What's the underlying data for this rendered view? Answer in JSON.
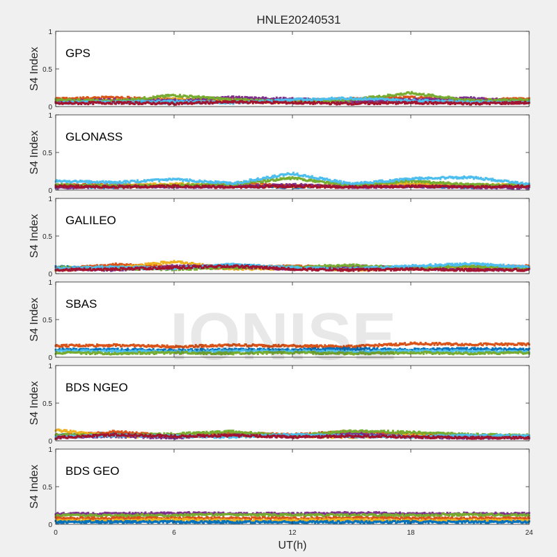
{
  "figure": {
    "title": "HNLE20240531",
    "xlabel": "UT(h)",
    "watermark": "IONISE"
  },
  "chart_data": {
    "type": "scatter",
    "xlim": [
      0,
      24
    ],
    "ylim": [
      0,
      1
    ],
    "x_ticks": [
      0,
      6,
      12,
      18,
      24
    ],
    "x_tick_labels": [
      "0",
      "6",
      "12",
      "18",
      "24"
    ],
    "y_ticks": [
      0,
      0.5,
      1
    ],
    "y_tick_labels": [
      "0",
      "0.5",
      "1"
    ],
    "grid": false,
    "colors": [
      "#0072BD",
      "#D95319",
      "#EDB120",
      "#7E2F8E",
      "#77AC30",
      "#4DBEEE",
      "#A2142F"
    ],
    "panels": [
      {
        "label": "GPS",
        "ylabel": "S4 Index",
        "show_x_tick_labels": false,
        "series": [
          {
            "color": "#0072BD",
            "x": [
              0,
              3,
              6,
              9,
              12,
              15,
              18,
              21,
              24
            ],
            "y": [
              0.08,
              0.06,
              0.05,
              0.07,
              0.08,
              0.06,
              0.07,
              0.09,
              0.07
            ]
          },
          {
            "color": "#D95319",
            "x": [
              0,
              3,
              6,
              9,
              12,
              15,
              18,
              21,
              24
            ],
            "y": [
              0.1,
              0.12,
              0.09,
              0.11,
              0.08,
              0.1,
              0.12,
              0.09,
              0.1
            ]
          },
          {
            "color": "#EDB120",
            "x": [
              0,
              3,
              6,
              9,
              12,
              15,
              18,
              21,
              24
            ],
            "y": [
              0.06,
              0.08,
              0.1,
              0.07,
              0.06,
              0.08,
              0.07,
              0.06,
              0.08
            ]
          },
          {
            "color": "#7E2F8E",
            "x": [
              0,
              3,
              6,
              9,
              12,
              15,
              18,
              21,
              24
            ],
            "y": [
              0.07,
              0.09,
              0.08,
              0.12,
              0.1,
              0.07,
              0.09,
              0.11,
              0.06
            ]
          },
          {
            "color": "#77AC30",
            "x": [
              0,
              3,
              6,
              9,
              12,
              15,
              18,
              21,
              24
            ],
            "y": [
              0.09,
              0.07,
              0.15,
              0.09,
              0.07,
              0.09,
              0.18,
              0.08,
              0.09
            ]
          },
          {
            "color": "#4DBEEE",
            "x": [
              0,
              3,
              6,
              9,
              12,
              15,
              18,
              21,
              24
            ],
            "y": [
              0.05,
              0.06,
              0.07,
              0.05,
              0.09,
              0.11,
              0.08,
              0.06,
              0.05
            ]
          },
          {
            "color": "#A2142F",
            "x": [
              0,
              3,
              6,
              9,
              12,
              15,
              18,
              21,
              24
            ],
            "y": [
              0.04,
              0.05,
              0.04,
              0.06,
              0.05,
              0.04,
              0.05,
              0.04,
              0.05
            ]
          }
        ]
      },
      {
        "label": "GLONASS",
        "ylabel": "S4 Index",
        "show_x_tick_labels": false,
        "series": [
          {
            "color": "#0072BD",
            "x": [
              0,
              3,
              6,
              9,
              12,
              15,
              18,
              21,
              24
            ],
            "y": [
              0.05,
              0.04,
              0.06,
              0.05,
              0.04,
              0.06,
              0.05,
              0.04,
              0.06
            ]
          },
          {
            "color": "#D95319",
            "x": [
              0,
              3,
              6,
              9,
              12,
              15,
              18,
              21,
              24
            ],
            "y": [
              0.06,
              0.07,
              0.05,
              0.08,
              0.06,
              0.05,
              0.07,
              0.06,
              0.05
            ]
          },
          {
            "color": "#EDB120",
            "x": [
              0,
              3,
              6,
              9,
              12,
              15,
              18,
              21,
              24
            ],
            "y": [
              0.04,
              0.06,
              0.08,
              0.06,
              0.05,
              0.07,
              0.09,
              0.06,
              0.08
            ]
          },
          {
            "color": "#7E2F8E",
            "x": [
              0,
              3,
              6,
              9,
              12,
              15,
              18,
              21,
              24
            ],
            "y": [
              0.03,
              0.05,
              0.04,
              0.05,
              0.07,
              0.04,
              0.05,
              0.04,
              0.03
            ]
          },
          {
            "color": "#77AC30",
            "x": [
              0,
              3,
              6,
              9,
              12,
              15,
              18,
              21,
              24
            ],
            "y": [
              0.07,
              0.05,
              0.06,
              0.08,
              0.16,
              0.06,
              0.12,
              0.07,
              0.06
            ]
          },
          {
            "color": "#4DBEEE",
            "x": [
              0,
              3,
              6,
              9,
              12,
              15,
              18,
              21,
              24
            ],
            "y": [
              0.12,
              0.1,
              0.14,
              0.09,
              0.22,
              0.08,
              0.15,
              0.17,
              0.08
            ]
          },
          {
            "color": "#A2142F",
            "x": [
              0,
              3,
              6,
              9,
              12,
              15,
              18,
              21,
              24
            ],
            "y": [
              0.05,
              0.04,
              0.05,
              0.04,
              0.05,
              0.04,
              0.05,
              0.04,
              0.05
            ]
          }
        ]
      },
      {
        "label": "GALILEO",
        "ylabel": "S4 Index",
        "show_x_tick_labels": false,
        "series": [
          {
            "color": "#0072BD",
            "x": [
              0,
              3,
              6,
              9,
              12,
              15,
              18,
              21,
              24
            ],
            "y": [
              0.09,
              0.06,
              0.08,
              0.11,
              0.08,
              0.07,
              0.09,
              0.08,
              0.07
            ]
          },
          {
            "color": "#D95319",
            "x": [
              0,
              3,
              6,
              9,
              12,
              15,
              18,
              21,
              24
            ],
            "y": [
              0.06,
              0.12,
              0.09,
              0.07,
              0.1,
              0.08,
              0.06,
              0.09,
              0.1
            ]
          },
          {
            "color": "#EDB120",
            "x": [
              0,
              3,
              6,
              9,
              12,
              15,
              18,
              21,
              24
            ],
            "y": [
              0.05,
              0.08,
              0.16,
              0.06,
              0.07,
              0.05,
              0.08,
              0.07,
              0.08
            ]
          },
          {
            "color": "#7E2F8E",
            "x": [
              0,
              3,
              6,
              9,
              12,
              15,
              18,
              21,
              24
            ],
            "y": [
              0.07,
              0.05,
              0.1,
              0.09,
              0.06,
              0.1,
              0.07,
              0.05,
              0.06
            ]
          },
          {
            "color": "#77AC30",
            "x": [
              0,
              3,
              6,
              9,
              12,
              15,
              18,
              21,
              24
            ],
            "y": [
              0.08,
              0.07,
              0.06,
              0.08,
              0.09,
              0.11,
              0.07,
              0.1,
              0.07
            ]
          },
          {
            "color": "#4DBEEE",
            "x": [
              0,
              3,
              6,
              9,
              12,
              15,
              18,
              21,
              24
            ],
            "y": [
              0.07,
              0.09,
              0.07,
              0.12,
              0.08,
              0.06,
              0.1,
              0.13,
              0.09
            ]
          },
          {
            "color": "#A2142F",
            "x": [
              0,
              3,
              6,
              9,
              12,
              15,
              18,
              21,
              24
            ],
            "y": [
              0.05,
              0.06,
              0.08,
              0.1,
              0.06,
              0.05,
              0.06,
              0.05,
              0.05
            ]
          }
        ]
      },
      {
        "label": "SBAS",
        "ylabel": "S4 Index",
        "show_x_tick_labels": false,
        "series": [
          {
            "color": "#D95319",
            "x": [
              0,
              3,
              6,
              9,
              12,
              15,
              18,
              21,
              24
            ],
            "y": [
              0.15,
              0.16,
              0.14,
              0.16,
              0.15,
              0.14,
              0.18,
              0.17,
              0.17
            ]
          },
          {
            "color": "#0072BD",
            "x": [
              0,
              3,
              6,
              9,
              12,
              15,
              18,
              21,
              24
            ],
            "y": [
              0.1,
              0.1,
              0.09,
              0.1,
              0.1,
              0.11,
              0.1,
              0.11,
              0.1
            ]
          },
          {
            "color": "#4DBEEE",
            "x": [
              0,
              3,
              6,
              9,
              12,
              15,
              18,
              21,
              24
            ],
            "y": [
              0.08,
              0.08,
              0.07,
              0.08,
              0.08,
              0.07,
              0.08,
              0.08,
              0.07
            ]
          },
          {
            "color": "#77AC30",
            "x": [
              0,
              3,
              6,
              9,
              12,
              15,
              18,
              21,
              24
            ],
            "y": [
              0.06,
              0.05,
              0.06,
              0.05,
              0.06,
              0.05,
              0.06,
              0.05,
              0.06
            ]
          }
        ]
      },
      {
        "label": "BDS NGEO",
        "ylabel": "S4 Index",
        "show_x_tick_labels": false,
        "series": [
          {
            "color": "#0072BD",
            "x": [
              0,
              3,
              6,
              9,
              12,
              15,
              18,
              21,
              24
            ],
            "y": [
              0.07,
              0.1,
              0.05,
              0.09,
              0.07,
              0.08,
              0.06,
              0.05,
              0.05
            ]
          },
          {
            "color": "#D95319",
            "x": [
              0,
              3,
              6,
              9,
              12,
              15,
              18,
              21,
              24
            ],
            "y": [
              0.06,
              0.12,
              0.06,
              0.1,
              0.08,
              0.12,
              0.09,
              0.06,
              0.05
            ]
          },
          {
            "color": "#EDB120",
            "x": [
              0,
              3,
              6,
              9,
              12,
              15,
              18,
              21,
              24
            ],
            "y": [
              0.14,
              0.06,
              0.05,
              0.07,
              0.06,
              0.05,
              0.07,
              0.06,
              0.05
            ]
          },
          {
            "color": "#7E2F8E",
            "x": [
              0,
              3,
              6,
              9,
              12,
              15,
              18,
              21,
              24
            ],
            "y": [
              0.05,
              0.06,
              0.04,
              0.08,
              0.05,
              0.1,
              0.05,
              0.04,
              0.04
            ]
          },
          {
            "color": "#77AC30",
            "x": [
              0,
              3,
              6,
              9,
              12,
              15,
              18,
              21,
              24
            ],
            "y": [
              0.08,
              0.07,
              0.09,
              0.12,
              0.06,
              0.13,
              0.11,
              0.08,
              0.07
            ]
          },
          {
            "color": "#4DBEEE",
            "x": [
              0,
              3,
              6,
              9,
              12,
              15,
              18,
              21,
              24
            ],
            "y": [
              0.05,
              0.07,
              0.06,
              0.05,
              0.08,
              0.06,
              0.05,
              0.07,
              0.06
            ]
          },
          {
            "color": "#A2142F",
            "x": [
              0,
              3,
              6,
              9,
              12,
              15,
              18,
              21,
              24
            ],
            "y": [
              0.04,
              0.08,
              0.06,
              0.07,
              0.05,
              0.06,
              0.05,
              0.04,
              0.04
            ]
          }
        ]
      },
      {
        "label": "BDS GEO",
        "ylabel": "S4 Index",
        "show_x_tick_labels": true,
        "series": [
          {
            "color": "#7E2F8E",
            "x": [
              0,
              3,
              6,
              9,
              12,
              15,
              18,
              21,
              24
            ],
            "y": [
              0.14,
              0.14,
              0.15,
              0.14,
              0.14,
              0.15,
              0.14,
              0.14,
              0.14
            ]
          },
          {
            "color": "#77AC30",
            "x": [
              0,
              3,
              6,
              9,
              12,
              15,
              18,
              21,
              24
            ],
            "y": [
              0.12,
              0.12,
              0.12,
              0.13,
              0.12,
              0.12,
              0.12,
              0.13,
              0.12
            ]
          },
          {
            "color": "#D95319",
            "x": [
              0,
              3,
              6,
              9,
              12,
              15,
              18,
              21,
              24
            ],
            "y": [
              0.08,
              0.08,
              0.08,
              0.08,
              0.08,
              0.08,
              0.08,
              0.08,
              0.08
            ]
          },
          {
            "color": "#EDB120",
            "x": [
              0,
              3,
              6,
              9,
              12,
              15,
              18,
              21,
              24
            ],
            "y": [
              0.05,
              0.05,
              0.06,
              0.05,
              0.05,
              0.06,
              0.05,
              0.05,
              0.05
            ]
          },
          {
            "color": "#0072BD",
            "x": [
              0,
              3,
              6,
              9,
              12,
              15,
              18,
              21,
              24
            ],
            "y": [
              0.03,
              0.03,
              0.03,
              0.03,
              0.03,
              0.03,
              0.03,
              0.03,
              0.03
            ]
          }
        ]
      }
    ]
  }
}
